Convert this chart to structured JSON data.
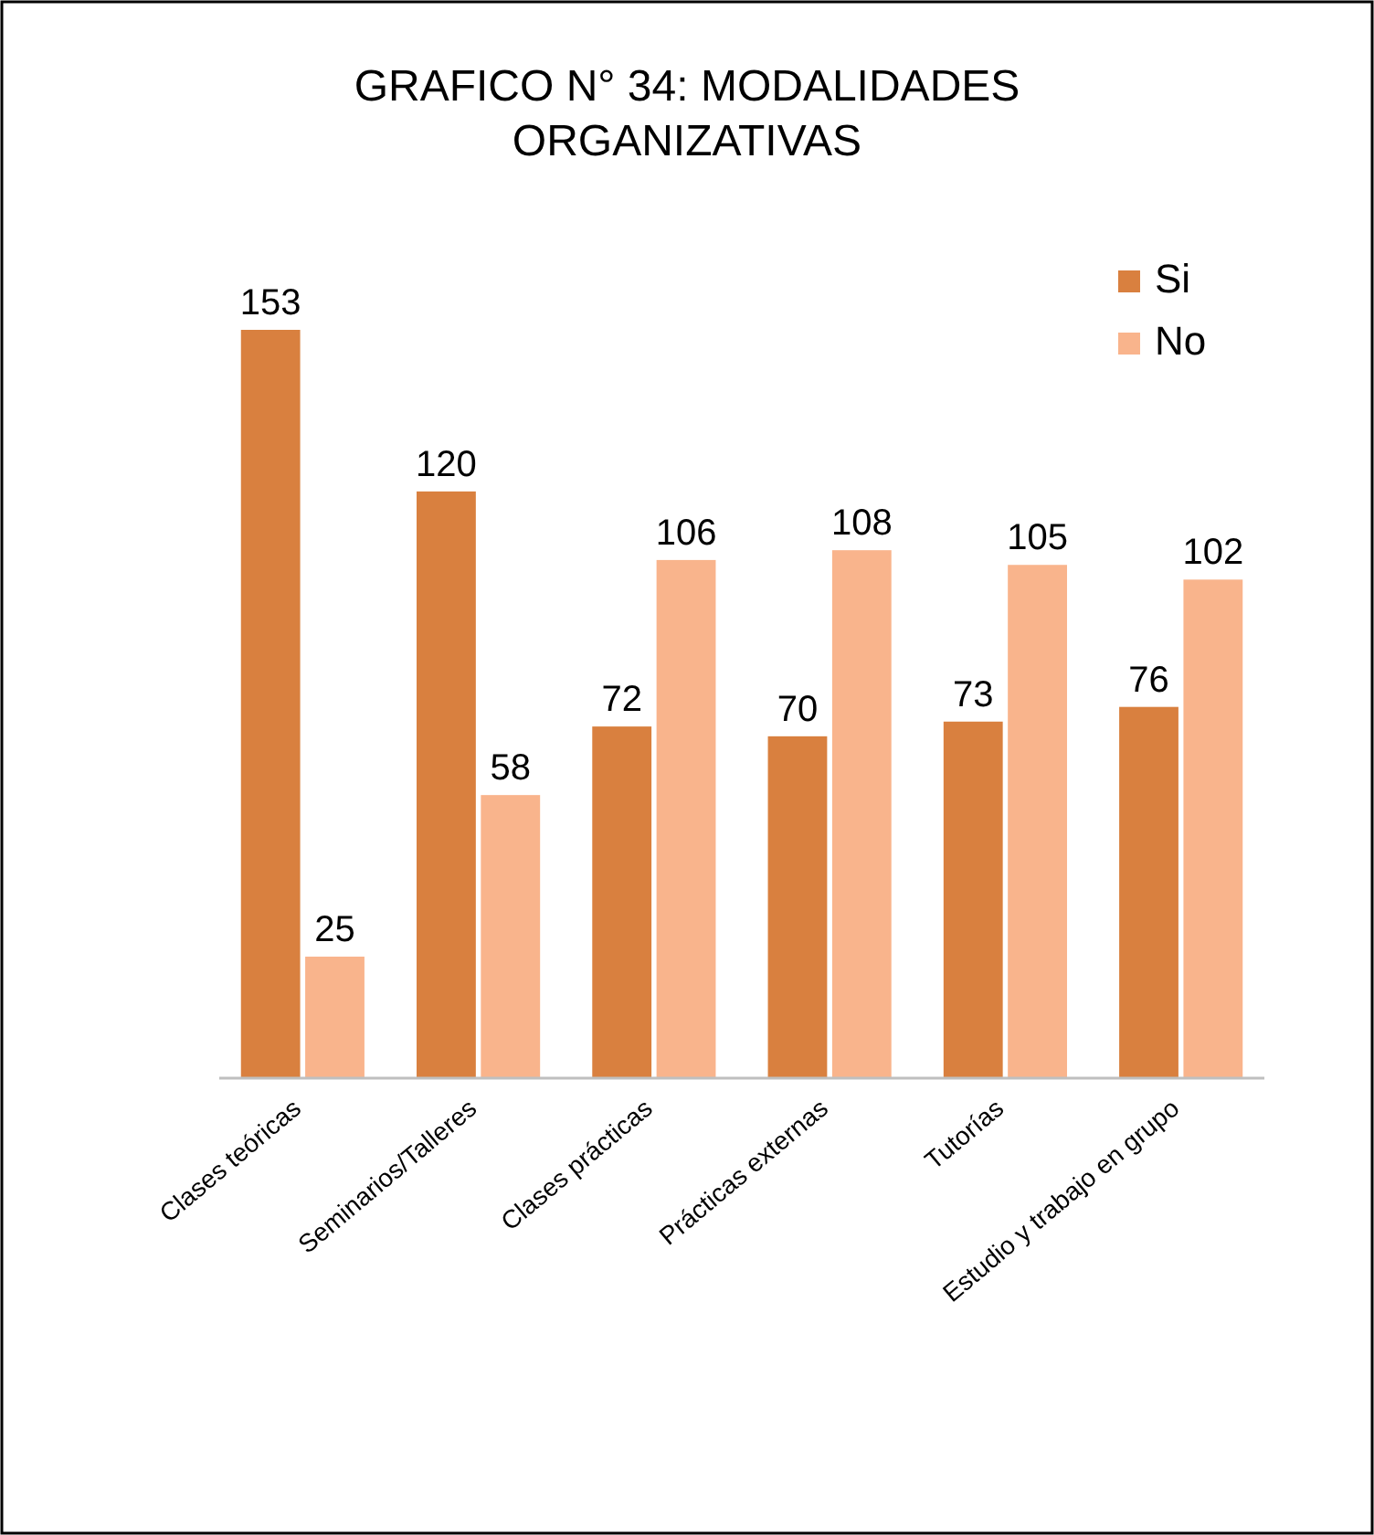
{
  "chart_data": {
    "type": "bar",
    "title": "GRAFICO N° 34: MODALIDADES ORGANIZATIVAS",
    "categories": [
      "Clases teóricas",
      "Seminarios/Talleres",
      "Clases prácticas",
      "Prácticas externas",
      "Tutorías",
      "Estudio y trabajo en grupo"
    ],
    "series": [
      {
        "name": "Si",
        "color": "#d9803f",
        "values": [
          153,
          120,
          72,
          70,
          73,
          76
        ]
      },
      {
        "name": "No",
        "color": "#f9b48c",
        "values": [
          25,
          58,
          106,
          108,
          105,
          102
        ]
      }
    ],
    "data_labels": true,
    "legend": "top right",
    "tick_labels": "x"
  }
}
